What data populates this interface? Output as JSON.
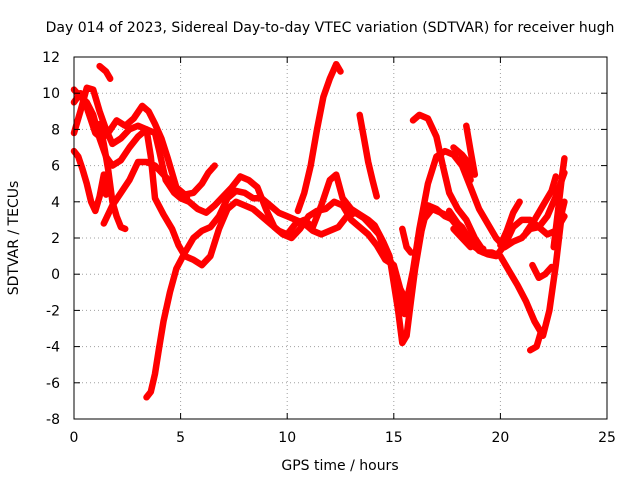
{
  "chart_data": {
    "type": "scatter",
    "title": "Day 014 of 2023, Sidereal Day-to-day VTEC variation (SDTVAR) for receiver hugh",
    "xlabel": "GPS time / hours",
    "ylabel": "SDTVAR / TECUs",
    "xlim": [
      0,
      25
    ],
    "ylim": [
      -8,
      12
    ],
    "xticks": [
      0,
      5,
      10,
      15,
      20,
      25
    ],
    "yticks": [
      -8,
      -6,
      -4,
      -2,
      0,
      2,
      4,
      6,
      8,
      10,
      12
    ],
    "grid": true,
    "marker": "+",
    "color": "#ff0000",
    "series": [
      {
        "name": "s1",
        "points": [
          [
            0,
            7.8
          ],
          [
            0.3,
            9
          ],
          [
            0.6,
            10.3
          ],
          [
            0.9,
            10.2
          ],
          [
            1.2,
            9
          ],
          [
            1.5,
            8
          ],
          [
            1.8,
            7.2
          ],
          [
            2.2,
            7.5
          ],
          [
            2.6,
            8
          ],
          [
            3,
            8.2
          ],
          [
            3.4,
            8
          ],
          [
            3.6,
            6.5
          ],
          [
            3.8,
            4.2
          ],
          [
            4.2,
            3.3
          ],
          [
            4.6,
            2.5
          ],
          [
            4.9,
            1.6
          ],
          [
            5.2,
            1
          ],
          [
            5.6,
            0.8
          ],
          [
            6,
            0.5
          ],
          [
            6.4,
            1
          ],
          [
            6.8,
            2.5
          ],
          [
            7.2,
            3.6
          ],
          [
            7.6,
            4
          ],
          [
            8,
            3.8
          ],
          [
            8.4,
            3.6
          ],
          [
            8.8,
            3.2
          ],
          [
            9.2,
            2.8
          ],
          [
            9.6,
            2.4
          ],
          [
            10,
            2.2
          ],
          [
            10.4,
            2.8
          ],
          [
            10.8,
            3
          ],
          [
            11.2,
            2.6
          ],
          [
            11.6,
            3.8
          ],
          [
            12,
            5.2
          ],
          [
            12.3,
            5.5
          ],
          [
            12.6,
            4.2
          ],
          [
            13,
            3.6
          ],
          [
            13.4,
            3.3
          ],
          [
            13.8,
            3
          ],
          [
            14.1,
            2.7
          ],
          [
            14.5,
            1.8
          ],
          [
            14.8,
            1
          ],
          [
            15,
            -0.5
          ],
          [
            15.2,
            -2
          ],
          [
            15.4,
            -3.8
          ],
          [
            15.6,
            -3.4
          ],
          [
            15.8,
            -1.5
          ],
          [
            16,
            0.3
          ],
          [
            16.3,
            2.4
          ],
          [
            16.6,
            3.8
          ],
          [
            17,
            3.6
          ],
          [
            17.4,
            3.2
          ],
          [
            17.8,
            3
          ],
          [
            18.2,
            2.6
          ],
          [
            18.6,
            1.8
          ],
          [
            19,
            1.3
          ],
          [
            19.4,
            1.1
          ],
          [
            19.8,
            1
          ],
          [
            20.2,
            1.6
          ],
          [
            20.6,
            2.6
          ],
          [
            21,
            3
          ],
          [
            21.4,
            3
          ],
          [
            21.8,
            2.6
          ],
          [
            22.2,
            2.2
          ],
          [
            22.6,
            2.4
          ],
          [
            23,
            3.2
          ]
        ]
      },
      {
        "name": "s2",
        "points": [
          [
            0,
            10.2
          ],
          [
            0.3,
            9.8
          ],
          [
            0.6,
            9.5
          ],
          [
            0.9,
            8.8
          ],
          [
            1.2,
            7.5
          ],
          [
            1.5,
            6.5
          ],
          [
            1.8,
            6
          ],
          [
            2.2,
            6.3
          ],
          [
            2.6,
            7
          ],
          [
            3,
            7.6
          ],
          [
            3.4,
            8
          ],
          [
            3.8,
            7.8
          ],
          [
            4,
            6.8
          ],
          [
            4.3,
            5.2
          ],
          [
            4.7,
            4.5
          ],
          [
            5,
            4.2
          ],
          [
            5.4,
            4
          ],
          [
            5.8,
            3.6
          ],
          [
            6.2,
            3.4
          ],
          [
            6.6,
            3.8
          ],
          [
            7,
            4.3
          ],
          [
            7.4,
            4.8
          ],
          [
            7.8,
            5.4
          ],
          [
            8.2,
            5.2
          ],
          [
            8.6,
            4.8
          ],
          [
            9,
            3.6
          ],
          [
            9.4,
            2.6
          ],
          [
            9.8,
            2.2
          ],
          [
            10.2,
            2
          ],
          [
            10.6,
            2.5
          ],
          [
            11,
            3.2
          ],
          [
            11.4,
            3.5
          ],
          [
            11.8,
            3.6
          ],
          [
            12.2,
            4
          ],
          [
            12.6,
            3.8
          ],
          [
            13,
            3
          ],
          [
            13.4,
            2.6
          ],
          [
            13.8,
            2.2
          ],
          [
            14.2,
            1.6
          ],
          [
            14.6,
            0.8
          ],
          [
            15,
            0.5
          ],
          [
            15.3,
            -0.8
          ],
          [
            15.6,
            -1.5
          ],
          [
            15.9,
            0.2
          ],
          [
            16.2,
            2.5
          ],
          [
            16.6,
            5
          ],
          [
            17,
            6.5
          ],
          [
            17.4,
            6.8
          ],
          [
            17.8,
            6.6
          ],
          [
            18.2,
            6
          ],
          [
            18.6,
            4.8
          ],
          [
            19,
            3.6
          ],
          [
            19.4,
            2.8
          ],
          [
            19.8,
            2
          ],
          [
            20.2,
            1.5
          ],
          [
            20.6,
            1.8
          ],
          [
            21,
            2
          ],
          [
            21.4,
            2.5
          ],
          [
            21.8,
            2.6
          ],
          [
            22.2,
            3.2
          ],
          [
            22.6,
            4.3
          ],
          [
            23,
            5.6
          ]
        ]
      },
      {
        "name": "s3",
        "points": [
          [
            0,
            9.5
          ],
          [
            0.3,
            10
          ],
          [
            0.6,
            9.2
          ],
          [
            0.8,
            8.5
          ],
          [
            1,
            7.8
          ],
          [
            1.3,
            7.5
          ],
          [
            1.6,
            7.8
          ],
          [
            2,
            8.5
          ],
          [
            2.4,
            8.2
          ],
          [
            2.8,
            8.6
          ],
          [
            3.2,
            9.3
          ],
          [
            3.5,
            9
          ],
          [
            3.8,
            8.3
          ],
          [
            4.1,
            7.5
          ],
          [
            4.4,
            6.4
          ],
          [
            4.8,
            4.8
          ],
          [
            5.2,
            4.4
          ],
          [
            5.6,
            4.5
          ],
          [
            6,
            5
          ],
          [
            6.3,
            5.6
          ],
          [
            6.6,
            6
          ]
        ]
      },
      {
        "name": "s4",
        "points": [
          [
            3.4,
            -6.8
          ],
          [
            3.6,
            -6.5
          ],
          [
            3.8,
            -5.5
          ],
          [
            4,
            -4
          ],
          [
            4.2,
            -2.6
          ],
          [
            4.5,
            -1
          ],
          [
            4.8,
            0.3
          ],
          [
            5.2,
            1.2
          ],
          [
            5.6,
            2
          ],
          [
            6,
            2.4
          ],
          [
            6.4,
            2.6
          ],
          [
            6.8,
            3.2
          ],
          [
            7.2,
            4.2
          ],
          [
            7.6,
            4.6
          ],
          [
            8,
            4.5
          ],
          [
            8.4,
            4.2
          ],
          [
            8.8,
            4.2
          ],
          [
            9.2,
            3.8
          ],
          [
            9.6,
            3.4
          ],
          [
            10,
            3.2
          ],
          [
            10.4,
            3
          ],
          [
            10.8,
            2.8
          ],
          [
            11.2,
            2.4
          ],
          [
            11.6,
            2.2
          ],
          [
            12,
            2.4
          ],
          [
            12.4,
            2.6
          ],
          [
            12.8,
            3.2
          ],
          [
            13.2,
            3.4
          ],
          [
            13.6,
            3.1
          ],
          [
            14,
            2.6
          ],
          [
            14.3,
            2.2
          ],
          [
            14.6,
            1.2
          ],
          [
            14.9,
            0.6
          ],
          [
            15.2,
            -1
          ],
          [
            15.5,
            -2.2
          ],
          [
            15.8,
            -0.5
          ],
          [
            16.1,
            1.4
          ],
          [
            16.4,
            3
          ],
          [
            16.8,
            3.6
          ],
          [
            17.2,
            3.4
          ],
          [
            17.6,
            3.2
          ],
          [
            18,
            2.6
          ],
          [
            18.4,
            2.2
          ],
          [
            18.8,
            1.5
          ],
          [
            19.2,
            1.2
          ],
          [
            19.6,
            1.2
          ],
          [
            20,
            1
          ],
          [
            20.4,
            0.2
          ],
          [
            20.8,
            -0.6
          ],
          [
            21.2,
            -1.5
          ],
          [
            21.6,
            -2.6
          ],
          [
            22,
            -3.4
          ],
          [
            22.3,
            -2
          ],
          [
            22.6,
            0.5
          ],
          [
            22.9,
            3.5
          ],
          [
            23,
            4
          ]
        ]
      },
      {
        "name": "s5",
        "points": [
          [
            1.4,
            2.8
          ],
          [
            1.8,
            3.8
          ],
          [
            2.2,
            4.5
          ],
          [
            2.6,
            5.2
          ],
          [
            3,
            6.2
          ],
          [
            3.4,
            6.2
          ],
          [
            3.8,
            6
          ],
          [
            4.2,
            5.5
          ],
          [
            4.6,
            5
          ],
          [
            5,
            4.5
          ],
          [
            5.3,
            4.2
          ]
        ]
      },
      {
        "name": "s6",
        "points": [
          [
            0,
            6.8
          ],
          [
            0.2,
            6.5
          ],
          [
            0.4,
            5.8
          ],
          [
            0.6,
            5
          ],
          [
            0.8,
            4
          ],
          [
            1,
            3.5
          ],
          [
            1.2,
            4.3
          ],
          [
            1.4,
            5.5
          ],
          [
            1.5,
            4.4
          ]
        ]
      },
      {
        "name": "s7",
        "points": [
          [
            1.2,
            8.3
          ],
          [
            1.4,
            7.2
          ],
          [
            1.6,
            5.8
          ],
          [
            1.8,
            4
          ],
          [
            2,
            3.2
          ],
          [
            2.2,
            2.6
          ],
          [
            2.4,
            2.5
          ]
        ]
      },
      {
        "name": "s8",
        "points": [
          [
            1.2,
            11.5
          ],
          [
            1.5,
            11.2
          ],
          [
            1.7,
            10.8
          ]
        ]
      },
      {
        "name": "s9",
        "points": [
          [
            10.5,
            3.5
          ],
          [
            10.8,
            4.5
          ],
          [
            11.1,
            6
          ],
          [
            11.4,
            8
          ],
          [
            11.7,
            9.8
          ],
          [
            12,
            10.8
          ],
          [
            12.3,
            11.6
          ],
          [
            12.5,
            11.2
          ]
        ]
      },
      {
        "name": "s10",
        "points": [
          [
            13.4,
            8.8
          ],
          [
            13.6,
            7.5
          ],
          [
            13.8,
            6.2
          ],
          [
            14,
            5.2
          ],
          [
            14.2,
            4.3
          ]
        ]
      },
      {
        "name": "s11",
        "points": [
          [
            15.4,
            2.5
          ],
          [
            15.6,
            1.5
          ],
          [
            15.8,
            1.2
          ]
        ]
      },
      {
        "name": "s12",
        "points": [
          [
            15.9,
            8.5
          ],
          [
            16.2,
            8.8
          ],
          [
            16.6,
            8.6
          ],
          [
            17,
            7.6
          ],
          [
            17.3,
            6
          ],
          [
            17.6,
            4.5
          ],
          [
            18,
            3.6
          ],
          [
            18.4,
            3
          ],
          [
            18.8,
            2
          ],
          [
            19.2,
            1.3
          ]
        ]
      },
      {
        "name": "s13",
        "points": [
          [
            17.6,
            3.5
          ],
          [
            18,
            2.8
          ],
          [
            18.4,
            2.2
          ],
          [
            18.8,
            1.6
          ],
          [
            19.2,
            1.4
          ]
        ]
      },
      {
        "name": "s14",
        "points": [
          [
            17.8,
            2.5
          ],
          [
            18.2,
            2
          ],
          [
            18.6,
            1.5
          ]
        ]
      },
      {
        "name": "s15",
        "points": [
          [
            18.2,
            6.5
          ],
          [
            18.4,
            6.2
          ],
          [
            18.6,
            5.2
          ]
        ]
      },
      {
        "name": "s16",
        "points": [
          [
            17.8,
            7
          ],
          [
            18.2,
            6.6
          ],
          [
            18.6,
            6
          ]
        ]
      },
      {
        "name": "s17",
        "points": [
          [
            18.4,
            8.2
          ],
          [
            18.6,
            6.8
          ],
          [
            18.8,
            5.5
          ]
        ]
      },
      {
        "name": "s18",
        "points": [
          [
            20,
            1.6
          ],
          [
            20.3,
            2.4
          ],
          [
            20.6,
            3.4
          ],
          [
            20.9,
            4
          ]
        ]
      },
      {
        "name": "s19",
        "points": [
          [
            21.2,
            2.3
          ],
          [
            21.6,
            3
          ],
          [
            22,
            3.8
          ],
          [
            22.4,
            4.6
          ],
          [
            22.6,
            5.4
          ]
        ]
      },
      {
        "name": "s20",
        "points": [
          [
            21.4,
            -4.2
          ],
          [
            21.7,
            -4
          ],
          [
            21.9,
            -3.2
          ]
        ]
      },
      {
        "name": "s21",
        "points": [
          [
            21.5,
            0.5
          ],
          [
            21.8,
            -0.2
          ],
          [
            22.1,
            0
          ],
          [
            22.4,
            0.4
          ]
        ]
      },
      {
        "name": "s22",
        "points": [
          [
            22.5,
            1.5
          ],
          [
            22.7,
            3.5
          ],
          [
            22.9,
            5.5
          ],
          [
            23,
            6.4
          ]
        ]
      }
    ]
  }
}
